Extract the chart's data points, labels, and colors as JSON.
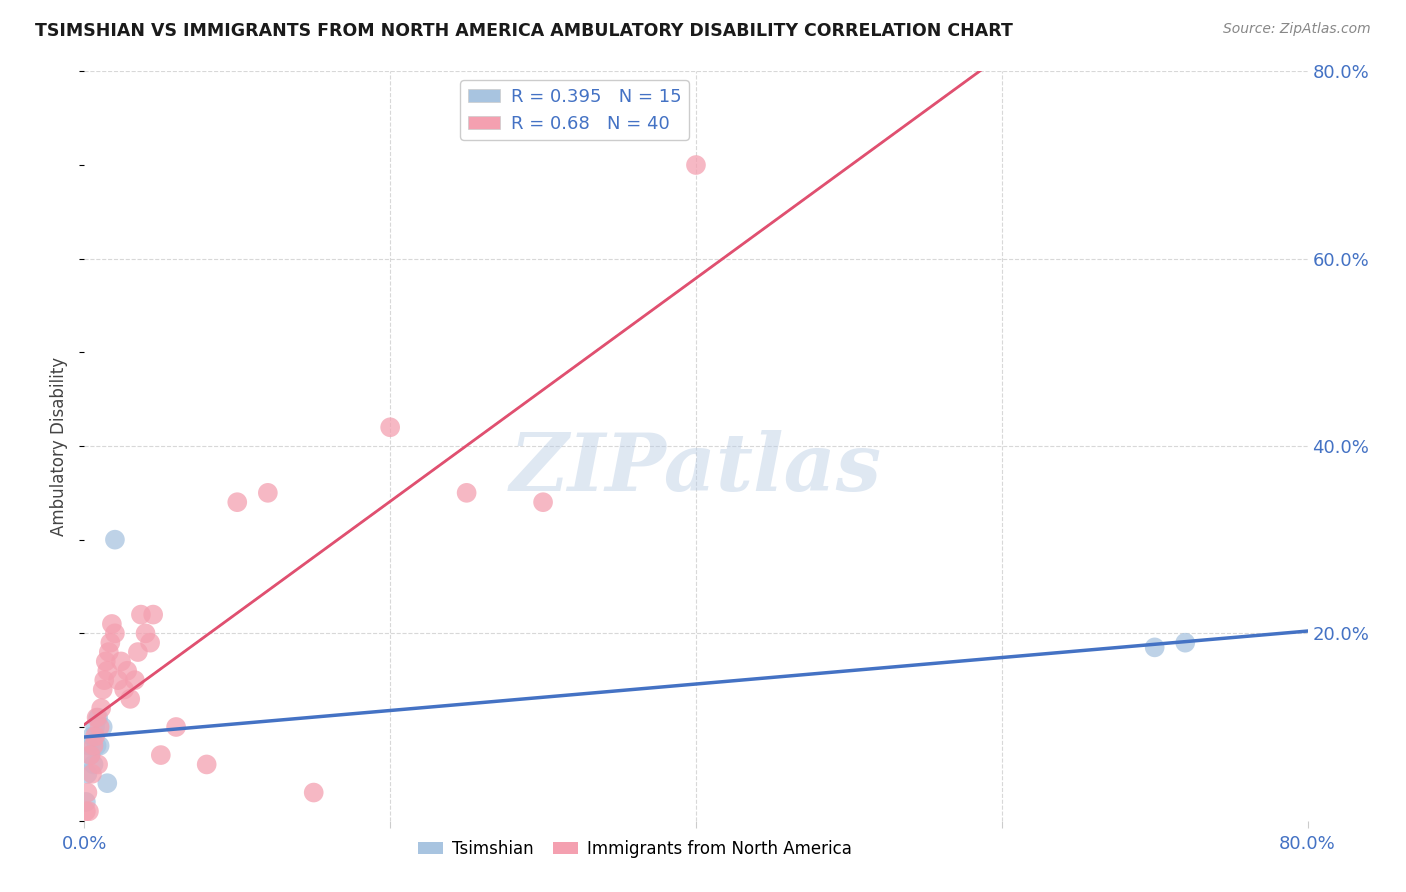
{
  "title": "TSIMSHIAN VS IMMIGRANTS FROM NORTH AMERICA AMBULATORY DISABILITY CORRELATION CHART",
  "source": "Source: ZipAtlas.com",
  "ylabel": "Ambulatory Disability",
  "xlim": [
    0.0,
    0.8
  ],
  "ylim": [
    0.0,
    0.8
  ],
  "xticks": [
    0.0,
    0.2,
    0.4,
    0.6,
    0.8
  ],
  "yticks": [
    0.0,
    0.2,
    0.4,
    0.6,
    0.8
  ],
  "xticklabels": [
    "0.0%",
    "",
    "",
    "",
    "80.0%"
  ],
  "yticklabels": [
    "",
    "20.0%",
    "40.0%",
    "60.0%",
    "80.0%"
  ],
  "background_color": "#ffffff",
  "grid_color": "#d8d8d8",
  "watermark_text": "ZIPatlas",
  "tsimshian": {
    "name": "Tsimshian",
    "R": 0.395,
    "N": 15,
    "dot_color": "#a8c4e0",
    "line_color": "#4472c4",
    "line_style": "-",
    "x": [
      0.001,
      0.002,
      0.003,
      0.004,
      0.005,
      0.006,
      0.007,
      0.008,
      0.009,
      0.01,
      0.012,
      0.015,
      0.02,
      0.7,
      0.72
    ],
    "y": [
      0.02,
      0.05,
      0.08,
      0.07,
      0.09,
      0.06,
      0.1,
      0.08,
      0.11,
      0.08,
      0.1,
      0.04,
      0.3,
      0.185,
      0.19
    ]
  },
  "immigrants": {
    "name": "Immigrants from North America",
    "R": 0.68,
    "N": 40,
    "dot_color": "#f4a0b0",
    "line_color": "#e05070",
    "dashed_color": "#e8a0b8",
    "line_style": "-",
    "x": [
      0.001,
      0.002,
      0.003,
      0.004,
      0.005,
      0.006,
      0.007,
      0.008,
      0.009,
      0.01,
      0.011,
      0.012,
      0.013,
      0.014,
      0.015,
      0.016,
      0.017,
      0.018,
      0.02,
      0.022,
      0.024,
      0.026,
      0.028,
      0.03,
      0.033,
      0.035,
      0.037,
      0.04,
      0.043,
      0.045,
      0.05,
      0.06,
      0.08,
      0.1,
      0.12,
      0.15,
      0.2,
      0.25,
      0.3,
      0.4
    ],
    "y": [
      0.01,
      0.03,
      0.01,
      0.07,
      0.05,
      0.08,
      0.09,
      0.11,
      0.06,
      0.1,
      0.12,
      0.14,
      0.15,
      0.17,
      0.16,
      0.18,
      0.19,
      0.21,
      0.2,
      0.15,
      0.17,
      0.14,
      0.16,
      0.13,
      0.15,
      0.18,
      0.22,
      0.2,
      0.19,
      0.22,
      0.07,
      0.1,
      0.06,
      0.34,
      0.35,
      0.03,
      0.42,
      0.35,
      0.34,
      0.7
    ]
  }
}
